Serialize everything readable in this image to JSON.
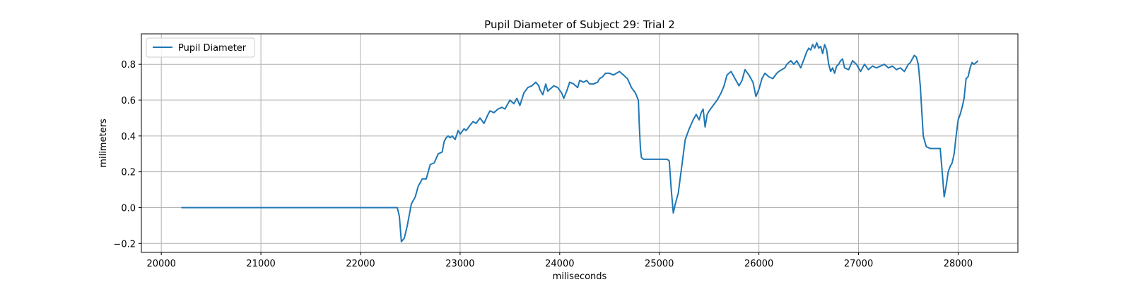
{
  "chart_data": {
    "type": "line",
    "title": "Pupil Diameter of Subject 29: Trial 2",
    "xlabel": "miliseconds",
    "ylabel": "milimeters",
    "xlim": [
      19800,
      28600
    ],
    "ylim": [
      -0.25,
      0.97
    ],
    "xticks": [
      20000,
      21000,
      22000,
      23000,
      24000,
      25000,
      26000,
      27000,
      28000
    ],
    "yticks": [
      -0.2,
      0.0,
      0.2,
      0.4,
      0.6,
      0.8
    ],
    "ytick_labels": [
      "−0.2",
      "0.0",
      "0.2",
      "0.4",
      "0.6",
      "0.8"
    ],
    "grid": true,
    "legend_position": "top-left",
    "color": "#1f77b4",
    "series": [
      {
        "name": "Pupil Diameter",
        "x": [
          20200,
          22000,
          22370,
          22390,
          22410,
          22440,
          22470,
          22510,
          22550,
          22580,
          22620,
          22660,
          22700,
          22740,
          22780,
          22820,
          22840,
          22860,
          22880,
          22900,
          22920,
          22950,
          22980,
          23000,
          23040,
          23060,
          23100,
          23130,
          23160,
          23200,
          23240,
          23280,
          23300,
          23340,
          23380,
          23420,
          23450,
          23480,
          23500,
          23540,
          23570,
          23600,
          23640,
          23680,
          23720,
          23760,
          23790,
          23800,
          23830,
          23860,
          23880,
          23900,
          23940,
          23980,
          24020,
          24040,
          24070,
          24100,
          24140,
          24180,
          24200,
          24240,
          24270,
          24300,
          24340,
          24380,
          24400,
          24430,
          24460,
          24500,
          24540,
          24570,
          24600,
          24640,
          24680,
          24720,
          24760,
          24790,
          24800,
          24810,
          24820,
          24840,
          24900,
          24960,
          25020,
          25060,
          25080,
          25100,
          25120,
          25140,
          25160,
          25190,
          25230,
          25260,
          25300,
          25340,
          25370,
          25400,
          25420,
          25440,
          25460,
          25480,
          25500,
          25540,
          25580,
          25620,
          25650,
          25680,
          25720,
          25760,
          25800,
          25830,
          25860,
          25900,
          25940,
          25970,
          26000,
          26030,
          26060,
          26100,
          26140,
          26180,
          26200,
          26230,
          26260,
          26280,
          26300,
          26320,
          26350,
          26380,
          26420,
          26460,
          26480,
          26500,
          26520,
          26540,
          26560,
          26580,
          26600,
          26620,
          26640,
          26660,
          26680,
          26700,
          26720,
          26740,
          26760,
          26780,
          26800,
          26820,
          26840,
          26860,
          26900,
          26940,
          26980,
          27020,
          27060,
          27100,
          27140,
          27180,
          27220,
          27260,
          27300,
          27340,
          27380,
          27420,
          27460,
          27500,
          27520,
          27540,
          27560,
          27580,
          27600,
          27620,
          27650,
          27680,
          27720,
          27760,
          27780,
          27800,
          27820,
          27840,
          27860,
          27880,
          27900,
          27920,
          27940,
          27960,
          27980,
          28000,
          28020,
          28040,
          28060,
          28080,
          28100,
          28120,
          28140,
          28160,
          28200
        ],
        "y": [
          0.0,
          0.0,
          0.0,
          -0.05,
          -0.19,
          -0.17,
          -0.1,
          0.02,
          0.06,
          0.12,
          0.16,
          0.16,
          0.24,
          0.25,
          0.3,
          0.31,
          0.37,
          0.39,
          0.4,
          0.39,
          0.4,
          0.38,
          0.43,
          0.41,
          0.44,
          0.43,
          0.46,
          0.48,
          0.47,
          0.5,
          0.47,
          0.52,
          0.54,
          0.53,
          0.55,
          0.56,
          0.55,
          0.58,
          0.6,
          0.58,
          0.61,
          0.57,
          0.64,
          0.67,
          0.68,
          0.7,
          0.68,
          0.66,
          0.63,
          0.69,
          0.65,
          0.66,
          0.68,
          0.67,
          0.64,
          0.61,
          0.65,
          0.7,
          0.69,
          0.67,
          0.71,
          0.7,
          0.71,
          0.69,
          0.69,
          0.7,
          0.72,
          0.73,
          0.75,
          0.75,
          0.74,
          0.75,
          0.76,
          0.74,
          0.72,
          0.67,
          0.64,
          0.6,
          0.45,
          0.33,
          0.28,
          0.27,
          0.27,
          0.27,
          0.27,
          0.27,
          0.27,
          0.26,
          0.1,
          -0.03,
          0.02,
          0.08,
          0.25,
          0.38,
          0.44,
          0.49,
          0.52,
          0.49,
          0.53,
          0.55,
          0.45,
          0.52,
          0.54,
          0.57,
          0.6,
          0.64,
          0.68,
          0.74,
          0.76,
          0.72,
          0.68,
          0.71,
          0.77,
          0.74,
          0.7,
          0.62,
          0.66,
          0.72,
          0.75,
          0.73,
          0.72,
          0.75,
          0.76,
          0.77,
          0.78,
          0.8,
          0.81,
          0.82,
          0.8,
          0.82,
          0.78,
          0.84,
          0.87,
          0.89,
          0.88,
          0.91,
          0.89,
          0.92,
          0.89,
          0.9,
          0.86,
          0.91,
          0.88,
          0.8,
          0.76,
          0.78,
          0.75,
          0.79,
          0.8,
          0.82,
          0.83,
          0.78,
          0.77,
          0.82,
          0.8,
          0.76,
          0.8,
          0.77,
          0.79,
          0.78,
          0.79,
          0.8,
          0.78,
          0.79,
          0.77,
          0.78,
          0.76,
          0.8,
          0.81,
          0.83,
          0.85,
          0.84,
          0.8,
          0.68,
          0.4,
          0.34,
          0.33,
          0.33,
          0.33,
          0.33,
          0.33,
          0.2,
          0.06,
          0.12,
          0.2,
          0.23,
          0.25,
          0.3,
          0.4,
          0.49,
          0.52,
          0.56,
          0.61,
          0.72,
          0.73,
          0.78,
          0.81,
          0.8,
          0.82
        ]
      }
    ]
  }
}
